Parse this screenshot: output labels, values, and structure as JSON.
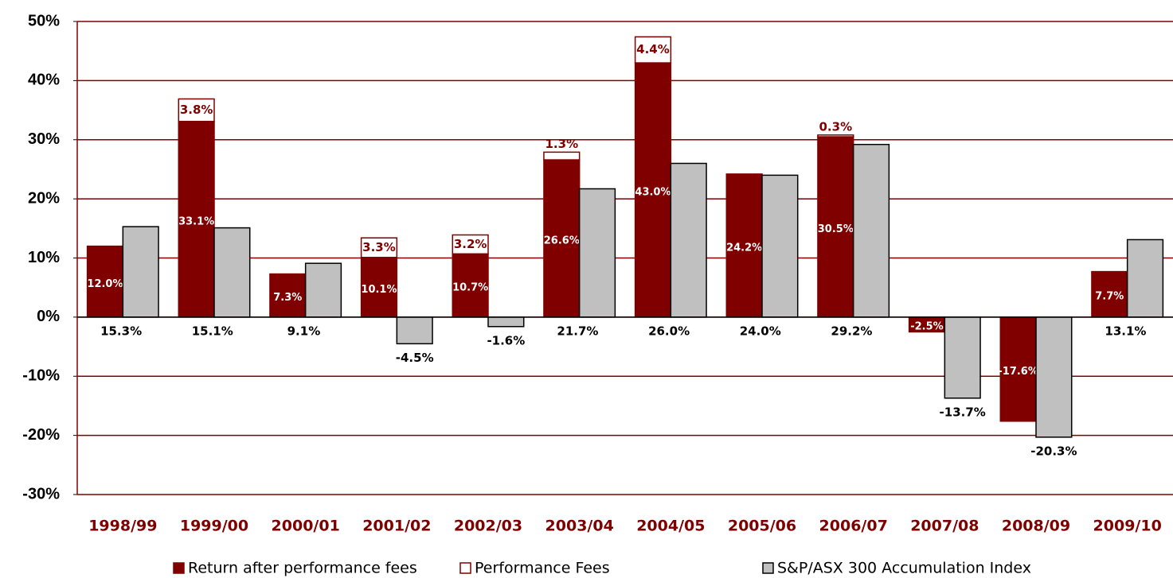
{
  "chart_data": {
    "type": "bar",
    "categories": [
      "1998/99",
      "1999/00",
      "2000/01",
      "2001/02",
      "2002/03",
      "2003/04",
      "2004/05",
      "2005/06",
      "2006/07",
      "2007/08",
      "2008/09",
      "2009/10"
    ],
    "series": [
      {
        "name": "Return after performance fees",
        "color": "#800000",
        "edgecolor": "#800000",
        "label_color": "#ffffff",
        "stack": "fund",
        "values": [
          12.0,
          33.1,
          7.3,
          10.1,
          10.7,
          26.6,
          43.0,
          24.2,
          30.5,
          -2.5,
          -17.6,
          7.7
        ],
        "value_labels": [
          "12.0%",
          "33.1%",
          "7.3%",
          "10.1%",
          "10.7%",
          "26.6%",
          "43.0%",
          "24.2%",
          "30.5%",
          "-2.5%",
          "-17.6%",
          "7.7%"
        ]
      },
      {
        "name": "Performance Fees",
        "color": "#ffffff",
        "edgecolor": "#800000",
        "label_color": "#800000",
        "stack": "fund",
        "values": [
          null,
          3.8,
          null,
          3.3,
          3.2,
          1.3,
          4.4,
          null,
          0.3,
          null,
          null,
          null
        ],
        "value_labels": [
          null,
          "3.8%",
          null,
          "3.3%",
          "3.2%",
          "1.3%",
          "4.4%",
          null,
          "0.3%",
          null,
          null,
          null
        ]
      },
      {
        "name": "S&P/ASX 300 Accumulation Index",
        "color": "#c0c0c0",
        "edgecolor": "#000000",
        "label_color": "#000000",
        "stack": "index",
        "values": [
          15.3,
          15.1,
          9.1,
          -4.5,
          -1.6,
          21.7,
          26.0,
          24.0,
          29.2,
          -13.7,
          -20.3,
          13.1
        ],
        "value_labels": [
          "15.3%",
          "15.1%",
          "9.1%",
          "-4.5%",
          "-1.6%",
          "21.7%",
          "26.0%",
          "24.0%",
          "29.2%",
          "-13.7%",
          "-20.3%",
          "13.1%"
        ]
      }
    ],
    "ylim": [
      -30,
      50
    ],
    "yticks": [
      {
        "value": -30,
        "label": "-30%"
      },
      {
        "value": -20,
        "label": "-20%"
      },
      {
        "value": -10,
        "label": "-10%"
      },
      {
        "value": 0,
        "label": "0%"
      },
      {
        "value": 10,
        "label": "10%"
      },
      {
        "value": 20,
        "label": "20%"
      },
      {
        "value": 30,
        "label": "30%"
      },
      {
        "value": 40,
        "label": "40%"
      },
      {
        "value": 50,
        "label": "50%"
      }
    ],
    "grid": true,
    "grid_color": "#800000",
    "legend": "bottom"
  }
}
